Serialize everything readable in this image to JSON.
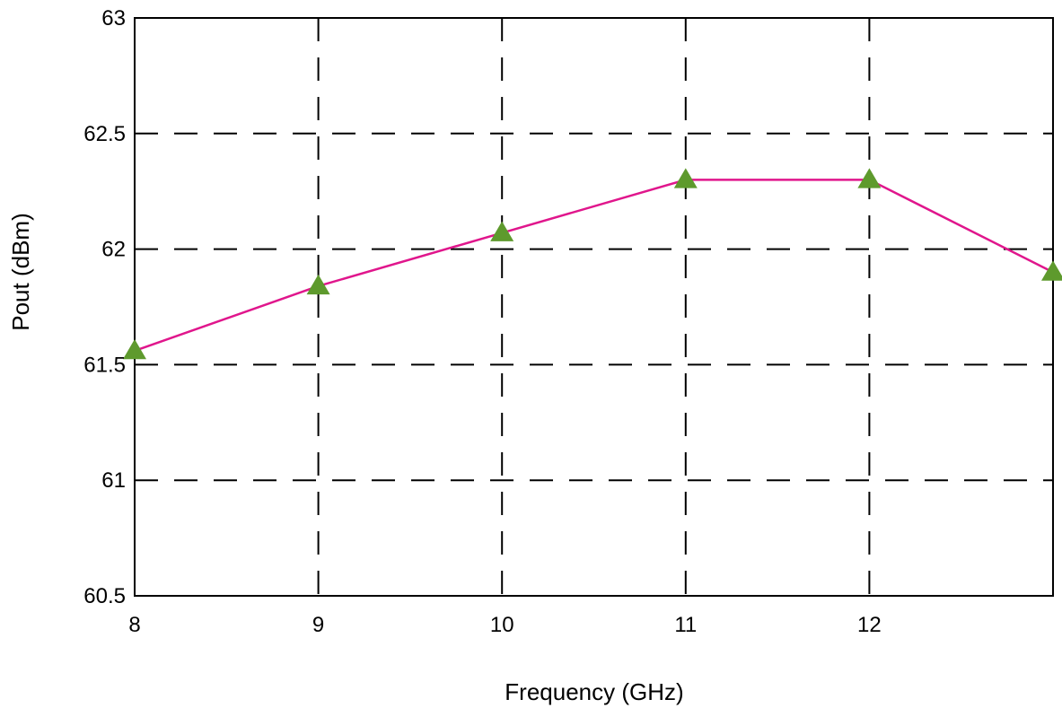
{
  "chart_data": {
    "type": "line",
    "title": "",
    "xlabel": "Frequency (GHz)",
    "ylabel": "Pout (dBm)",
    "xlim": [
      8,
      13
    ],
    "ylim": [
      60.5,
      63
    ],
    "x_ticks": [
      8,
      9,
      10,
      11,
      12
    ],
    "x_tick_labels": [
      "8",
      "9",
      "10",
      "11",
      "12"
    ],
    "y_ticks": [
      60.5,
      61,
      61.5,
      62,
      62.5,
      63
    ],
    "y_tick_labels": [
      "60.5",
      "61",
      "61.5",
      "62",
      "62.5",
      "63"
    ],
    "grid": true,
    "legend": "none",
    "series": [
      {
        "x": [
          8,
          9,
          10,
          11,
          12,
          13
        ],
        "values": [
          61.56,
          61.84,
          62.07,
          62.3,
          62.3,
          61.9
        ],
        "line_color": "#e0168c",
        "marker": "triangle",
        "marker_color": "#5e9a2d"
      }
    ]
  }
}
